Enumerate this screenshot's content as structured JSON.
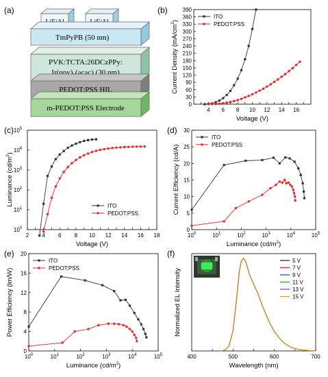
{
  "panel_labels": [
    "(a)",
    "(b)",
    "(c)",
    "(d)",
    "(e)",
    "(f)"
  ],
  "colors": {
    "ito": "#333333",
    "pedot": "#ee2222",
    "layer_top": "#bfe3f0",
    "layer_mid": "#cfe3cc",
    "layer_dark": "#a5a5a5",
    "layer_green": "#a8d79c"
  },
  "device": {
    "layers": [
      "TmPyPB (50 nm)",
      "PVK:TCTA:26DCzPPy:",
      "Ir(ppy)",
      "2",
      "(acac) (30 nm)",
      "PEDOT:PSS HIL",
      "m-PEDOT:PSS Electrode"
    ],
    "electrodes": [
      "LiF/Al",
      "LiF/Al"
    ]
  },
  "chart_data": [
    {
      "panel": "b",
      "type": "line",
      "xlabel": "Voltage (V)",
      "ylabel": "Current Density (mA/cm",
      "ylabel_sup": "2",
      "ylabel_end": ")",
      "xlim": [
        2,
        18
      ],
      "ylim": [
        0,
        390
      ],
      "xticks": [
        3,
        4,
        5,
        6,
        7,
        8,
        9,
        10,
        11,
        12,
        13,
        14,
        15,
        16,
        17
      ],
      "xticklabels": [
        "",
        "4",
        "",
        "6",
        "",
        "8",
        "",
        "10",
        "",
        "12",
        "",
        "14",
        "",
        "16",
        ""
      ],
      "yticks": [
        0,
        30,
        60,
        90,
        120,
        150,
        180,
        210,
        240,
        270,
        300,
        330,
        360,
        390
      ],
      "yticklabels": [
        "0",
        "30",
        "60",
        "90",
        "120",
        "150",
        "180",
        "210",
        "240",
        "270",
        "300",
        "330",
        "360",
        "390"
      ],
      "legend": "top-left",
      "series": [
        {
          "name": "ITO",
          "color": "#333333",
          "x": [
            3.5,
            4.0,
            4.5,
            5.0,
            5.5,
            6.0,
            6.5,
            7.0,
            7.5,
            8.0,
            8.5,
            9.0,
            9.5,
            10.0,
            10.5
          ],
          "y": [
            0,
            1,
            3,
            8,
            15,
            25,
            38,
            55,
            78,
            105,
            140,
            185,
            240,
            310,
            390
          ]
        },
        {
          "name": "PEDOT:PSS",
          "color": "#ee2222",
          "x": [
            4.0,
            4.5,
            5.0,
            5.5,
            6.0,
            6.5,
            7.0,
            7.5,
            8.0,
            8.5,
            9.0,
            9.5,
            10.0,
            10.5,
            11.0,
            11.5,
            12.0,
            12.5,
            13.0,
            13.5,
            14.0,
            14.5,
            15.0,
            15.5,
            16.0,
            16.5
          ],
          "y": [
            0,
            0.5,
            1,
            2,
            4,
            6,
            9,
            13,
            17,
            22,
            28,
            34,
            41,
            48,
            56,
            64,
            73,
            82,
            92,
            102,
            113,
            124,
            136,
            148,
            162,
            175
          ]
        }
      ]
    },
    {
      "panel": "c",
      "type": "line",
      "yscale": "log",
      "xlabel": "Voltage (V)",
      "ylabel": "Luminance (cd/m",
      "ylabel_sup": "2",
      "ylabel_end": ")",
      "xlim": [
        2,
        18
      ],
      "ylim": [
        1,
        100000
      ],
      "xticks": [
        2,
        3,
        4,
        5,
        6,
        7,
        8,
        9,
        10,
        11,
        12,
        13,
        14,
        15,
        16,
        17,
        18
      ],
      "xticklabels": [
        "2",
        "",
        "4",
        "",
        "6",
        "",
        "8",
        "",
        "10",
        "",
        "12",
        "",
        "14",
        "",
        "16",
        "",
        "18"
      ],
      "yticks": [
        1,
        10,
        100,
        1000,
        10000,
        100000
      ],
      "yticklabels": [
        [
          "10",
          "0"
        ],
        [
          "10",
          "1"
        ],
        [
          "10",
          "2"
        ],
        [
          "10",
          "3"
        ],
        [
          "10",
          "4"
        ],
        [
          "10",
          "5"
        ]
      ],
      "legend": "bottom-right",
      "series": [
        {
          "name": "ITO",
          "color": "#333333",
          "x": [
            3.5,
            4.0,
            4.5,
            5.0,
            5.5,
            6.0,
            6.5,
            7.0,
            7.5,
            8.0,
            8.5,
            9.0,
            9.5,
            10.0,
            10.5
          ],
          "y": [
            0.5,
            20,
            500,
            1500,
            3500,
            6000,
            9000,
            13000,
            17000,
            21000,
            25000,
            29000,
            32000,
            34000,
            35000
          ]
        },
        {
          "name": "PEDOT:PSS",
          "color": "#ee2222",
          "x": [
            4.0,
            4.5,
            5.0,
            5.5,
            6.0,
            6.5,
            7.0,
            7.5,
            8.0,
            8.5,
            9.0,
            9.5,
            10.0,
            10.5,
            11.0,
            11.5,
            12.0,
            12.5,
            13.0,
            13.5,
            14.0,
            14.5,
            15.0,
            15.5,
            16.0,
            16.5
          ],
          "y": [
            0.8,
            6,
            40,
            150,
            380,
            800,
            1400,
            2200,
            3200,
            4300,
            5500,
            6700,
            8000,
            9200,
            10300,
            11200,
            12000,
            12700,
            13300,
            13800,
            14200,
            14500,
            14800,
            15000,
            15100,
            15100
          ]
        }
      ]
    },
    {
      "panel": "d",
      "type": "line",
      "xscale": "log",
      "xlabel": "Luminance (cd/m",
      "xlabel_sup": "2",
      "xlabel_end": ")",
      "ylabel": "Current Efficiency (cd/A)",
      "xlim": [
        1,
        100000
      ],
      "ylim": [
        0,
        30
      ],
      "yticks": [
        0,
        5,
        10,
        15,
        20,
        25,
        30
      ],
      "yticklabels": [
        "0",
        "5",
        "10",
        "15",
        "20",
        "25",
        "30"
      ],
      "xticks": [
        1,
        10,
        100,
        1000,
        10000,
        100000
      ],
      "xticklabels": [
        [
          "10",
          "0"
        ],
        [
          "10",
          "1"
        ],
        [
          "10",
          "2"
        ],
        [
          "10",
          "3"
        ],
        [
          "10",
          "4"
        ],
        [
          "10",
          "5"
        ]
      ],
      "legend": "top-left",
      "series": [
        {
          "name": "ITO",
          "color": "#333333",
          "x": [
            1,
            20,
            150,
            700,
            2000,
            3500,
            6000,
            9000,
            14000,
            20000,
            25000,
            30000,
            33000,
            35000
          ],
          "y": [
            6,
            19.5,
            20.8,
            21,
            21.7,
            20,
            21.8,
            21.5,
            20.5,
            18.5,
            16.5,
            14,
            11.5,
            9.5
          ]
        },
        {
          "name": "PEDOT:PSS",
          "color": "#ee2222",
          "x": [
            1,
            20,
            60,
            200,
            700,
            1500,
            2500,
            3500,
            4500,
            5500,
            6500,
            8000,
            9500,
            11000,
            12500,
            13500,
            14500,
            15000
          ],
          "y": [
            1.2,
            2.5,
            6.5,
            8.5,
            10.5,
            12.5,
            13.5,
            14.5,
            14.2,
            15,
            14,
            14.2,
            13.5,
            13,
            12,
            11,
            10,
            8.8
          ]
        }
      ]
    },
    {
      "panel": "e",
      "type": "line",
      "xscale": "log",
      "xlabel": "Luminance (cd/m",
      "xlabel_sup": "2",
      "xlabel_end": ")",
      "ylabel": "Power Efficiency (lm/W)",
      "xlim": [
        1,
        100000
      ],
      "ylim": [
        0,
        20
      ],
      "yticks": [
        0,
        4,
        8,
        12,
        16,
        20
      ],
      "yticklabels": [
        "0",
        "4",
        "8",
        "12",
        "16",
        "20"
      ],
      "xticks": [
        1,
        10,
        100,
        1000,
        10000,
        100000
      ],
      "xticklabels": [
        [
          "10",
          "0"
        ],
        [
          "10",
          "1"
        ],
        [
          "10",
          "2"
        ],
        [
          "10",
          "3"
        ],
        [
          "10",
          "4"
        ],
        [
          "10",
          "5"
        ]
      ],
      "legend": "top-left",
      "series": [
        {
          "name": "ITO",
          "color": "#333333",
          "x": [
            1,
            18,
            150,
            700,
            2000,
            3500,
            5500,
            8000,
            12000,
            17000,
            22000,
            27000,
            32000,
            35000
          ],
          "y": [
            5,
            15.3,
            14.5,
            13.5,
            12.3,
            10.4,
            10.5,
            9.3,
            7.8,
            6.5,
            5.5,
            4.5,
            3.5,
            2.8
          ]
        },
        {
          "name": "PEDOT:PSS",
          "color": "#ee2222",
          "x": [
            1,
            20,
            60,
            200,
            500,
            1200,
            2000,
            3000,
            4500,
            6000,
            8000,
            10000,
            12000,
            14000,
            15000
          ],
          "y": [
            1,
            1.7,
            4,
            4.5,
            5.3,
            5.6,
            5.6,
            5.5,
            5.3,
            5,
            4.5,
            4,
            3.3,
            2.7,
            2
          ]
        }
      ]
    },
    {
      "panel": "f",
      "type": "line",
      "xlabel": "Wavelength (nm)",
      "ylabel": "Normalized EL Intensity",
      "xlim": [
        400,
        700
      ],
      "ylim": [
        0,
        1.05
      ],
      "xticks": [
        400,
        450,
        500,
        550,
        600,
        650,
        700
      ],
      "xticklabels": [
        "400",
        "",
        "500",
        "",
        "600",
        "",
        "700"
      ],
      "legend": "top-right",
      "series": [
        {
          "name": "5 V",
          "color": "#333333",
          "x": [
            470,
            480,
            490,
            500,
            510,
            515,
            520,
            525,
            530,
            535,
            540,
            550,
            560,
            570,
            580,
            590,
            600,
            610,
            620,
            630,
            640,
            650,
            660,
            670,
            680,
            690,
            700
          ],
          "y": [
            0,
            0.01,
            0.05,
            0.22,
            0.62,
            0.85,
            0.97,
            1.0,
            0.97,
            0.9,
            0.82,
            0.72,
            0.62,
            0.5,
            0.39,
            0.29,
            0.21,
            0.15,
            0.1,
            0.065,
            0.04,
            0.025,
            0.015,
            0.01,
            0.005,
            0.003,
            0
          ]
        },
        {
          "name": "7 V",
          "color": "#ee2222"
        },
        {
          "name": "9 V",
          "color": "#1f4fd8"
        },
        {
          "name": "11 V",
          "color": "#2aa02a"
        },
        {
          "name": "13 V",
          "color": "#9b3fd0"
        },
        {
          "name": "15 V",
          "color": "#e0a000"
        }
      ]
    }
  ]
}
